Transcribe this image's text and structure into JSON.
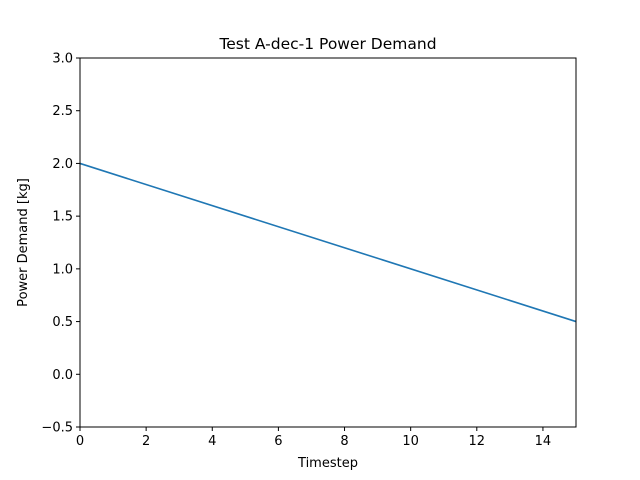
{
  "chart_data": {
    "type": "line",
    "title": "Test A-dec-1 Power Demand",
    "xlabel": "Timestep",
    "ylabel": "Power Demand [kg]",
    "xlim": [
      0,
      15
    ],
    "ylim": [
      -0.5,
      3.0
    ],
    "xticks": [
      0,
      2,
      4,
      6,
      8,
      10,
      12,
      14
    ],
    "xtick_labels": [
      "0",
      "2",
      "4",
      "6",
      "8",
      "10",
      "12",
      "14"
    ],
    "yticks": [
      -0.5,
      0.0,
      0.5,
      1.0,
      1.5,
      2.0,
      2.5,
      3.0
    ],
    "ytick_labels": [
      "−0.5",
      "0.0",
      "0.5",
      "1.0",
      "1.5",
      "2.0",
      "2.5",
      "3.0"
    ],
    "grid": false,
    "series": [
      {
        "color": "#1f77b4",
        "x": [
          0,
          15
        ],
        "y": [
          2.0,
          0.5
        ]
      }
    ]
  }
}
